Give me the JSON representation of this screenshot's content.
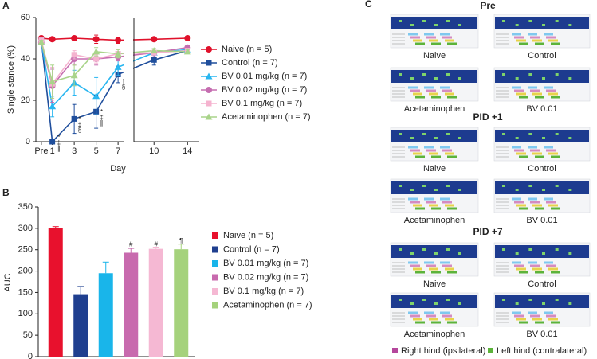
{
  "chart_data": [
    {
      "type": "line",
      "panel_label": "A",
      "ylabel": "Single stance (%)",
      "xlabel": "Day",
      "x": [
        0,
        1,
        3,
        5,
        7,
        10,
        14
      ],
      "xlim": [
        [
          -0.5,
          7.5
        ],
        [
          7.6,
          15.4
        ]
      ],
      "xticks": [
        {
          "value": 0,
          "label": "Pre"
        },
        1,
        3,
        5,
        7,
        10,
        14
      ],
      "ylim": [
        0,
        60
      ],
      "yticks": [
        0,
        20,
        40,
        60
      ],
      "series": [
        {
          "name": "Naive (n = 5)",
          "color": "#e0112b",
          "marker": "circle",
          "values": [
            50,
            49.5,
            50,
            49.5,
            49,
            49.5,
            50
          ],
          "errors": [
            1,
            1,
            1,
            2,
            1.5,
            1,
            1
          ]
        },
        {
          "name": "Control (n = 7)",
          "color": "#1f4e9c",
          "marker": "square",
          "values": [
            49,
            0,
            11,
            14.5,
            32.5,
            39.5,
            44
          ],
          "errors": [
            1,
            0,
            7,
            8,
            4,
            2.5,
            1
          ]
        },
        {
          "name": "BV 0.01 mg/kg (n = 7)",
          "color": "#29b6f0",
          "marker": "triangle",
          "values": [
            48,
            17,
            28.5,
            22,
            36,
            43,
            44.5
          ],
          "errors": [
            1,
            5,
            6,
            9,
            4,
            2,
            1
          ]
        },
        {
          "name": "BV 0.02 mg/kg (n = 7)",
          "color": "#c56db0",
          "marker": "circle",
          "values": [
            48,
            27,
            40,
            40,
            41,
            43,
            45.5
          ],
          "errors": [
            1,
            8,
            3,
            3,
            2,
            2,
            1
          ]
        },
        {
          "name": "BV 0.1 mg/kg (n = 7)",
          "color": "#f5b3cf",
          "marker": "square",
          "values": [
            49,
            28,
            42,
            40,
            42.5,
            43,
            44
          ],
          "errors": [
            1,
            8,
            2,
            2,
            2,
            1,
            1
          ]
        },
        {
          "name": "Acetaminophen (n = 7)",
          "color": "#a9d48a",
          "marker": "triangle",
          "values": [
            48,
            29,
            32,
            43.5,
            42.5,
            44,
            43.5
          ],
          "errors": [
            1,
            8,
            5,
            2,
            2,
            1,
            1
          ]
        }
      ],
      "annotations": [
        {
          "text": "*",
          "x": 1.6,
          "y": 1.9
        },
        {
          "text": "‡",
          "x": 1.6,
          "y": -0.8
        },
        {
          "text": "∥",
          "x": 1.6,
          "y": -3.5
        },
        {
          "text": "*",
          "x": 3.5,
          "y": 10.8
        },
        {
          "text": "‡",
          "x": 3.5,
          "y": 8
        },
        {
          "text": "§",
          "x": 3.5,
          "y": 5.4
        },
        {
          "text": "*",
          "x": 5.5,
          "y": 14.2
        },
        {
          "text": "‡",
          "x": 5.5,
          "y": 11.5
        },
        {
          "text": "∥",
          "x": 5.5,
          "y": 8.8
        },
        {
          "text": "†",
          "x": 7.5,
          "y": 28.8
        },
        {
          "text": "§",
          "x": 7.5,
          "y": 26.2
        }
      ]
    },
    {
      "type": "bar",
      "panel_label": "B",
      "ylabel": "AUC",
      "categories": [
        "Naive (n = 5)",
        "Control (n = 7)",
        "BV 0.01 mg/kg (n = 7)",
        "BV 0.02 mg/kg (n = 7)",
        "BV 0.1 mg/kg (n = 7)",
        "Acetaminophen (n = 7)"
      ],
      "values": [
        301,
        146,
        195,
        243,
        252,
        251
      ],
      "errors": [
        3,
        18,
        26,
        10,
        4,
        12
      ],
      "colors": [
        "#e8112d",
        "#1f3f8f",
        "#19b5ea",
        "#c86aae",
        "#f5b8d3",
        "#a5d27c"
      ],
      "ylim": [
        0,
        350
      ],
      "yticks": [
        0,
        50,
        100,
        150,
        200,
        250,
        300,
        350
      ],
      "annotations": [
        {
          "text": "#",
          "x": "BV 0.02 mg/kg (n = 7)",
          "y": 262
        },
        {
          "text": "#",
          "x": "BV 0.1 mg/kg (n = 7)",
          "y": 262
        },
        {
          "text": "¶",
          "x": "Acetaminophen (n = 7)",
          "y": 270
        }
      ]
    }
  ],
  "panel_c": {
    "label": "C",
    "groups": [
      {
        "title": "Pre",
        "captions": [
          "Naive",
          "Control",
          "Acetaminophen",
          "BV 0.01"
        ]
      },
      {
        "title": "PID +1",
        "captions": [
          "Naive",
          "Control",
          "Acetaminophen",
          "BV 0.01"
        ]
      },
      {
        "title": "PID +7",
        "captions": [
          "Naive",
          "Control",
          "Acetaminophen",
          "BV 0.01"
        ]
      }
    ],
    "legend": [
      {
        "name": "Right hind (ipsilateral)",
        "color": "#b5479c"
      },
      {
        "name": "Left hind (contralateral)",
        "color": "#5cb33a"
      }
    ]
  }
}
